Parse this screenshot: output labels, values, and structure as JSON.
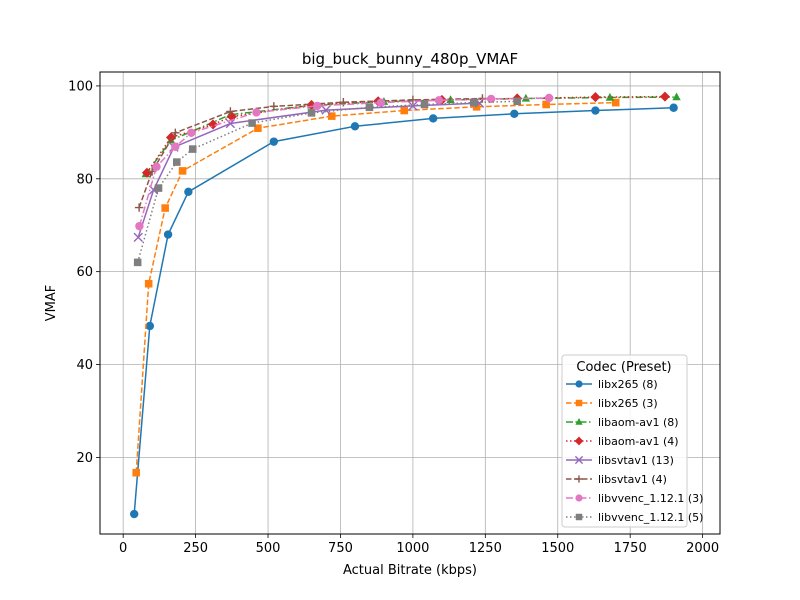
{
  "chart_data": {
    "type": "line",
    "title": "big_buck_bunny_480p_VMAF",
    "xlabel": "Actual Bitrate (kbps)",
    "ylabel": "VMAF",
    "xlim": [
      -80,
      2060
    ],
    "ylim": [
      3.5,
      103
    ],
    "xticks": [
      0,
      250,
      500,
      750,
      1000,
      1250,
      1500,
      1750,
      2000
    ],
    "yticks": [
      20,
      40,
      60,
      80,
      100
    ],
    "grid": true,
    "legend": {
      "title": "Codec (Preset)",
      "placement": "lower right"
    },
    "series": [
      {
        "name": "libx265 (8)",
        "color": "#1f77b4",
        "marker": "circle",
        "dash": "solid",
        "points": [
          [
            38,
            7.8
          ],
          [
            92,
            48.3
          ],
          [
            155,
            68.0
          ],
          [
            225,
            77.2
          ],
          [
            520,
            88.0
          ],
          [
            800,
            91.3
          ],
          [
            1070,
            93.0
          ],
          [
            1350,
            94.0
          ],
          [
            1630,
            94.7
          ],
          [
            1900,
            95.3
          ]
        ]
      },
      {
        "name": "libx265 (3)",
        "color": "#ff7f0e",
        "marker": "square",
        "dash": "dashed",
        "points": [
          [
            45,
            16.7
          ],
          [
            88,
            57.4
          ],
          [
            145,
            73.7
          ],
          [
            205,
            81.7
          ],
          [
            465,
            90.9
          ],
          [
            720,
            93.5
          ],
          [
            970,
            94.7
          ],
          [
            1220,
            95.5
          ],
          [
            1460,
            96.0
          ],
          [
            1700,
            96.4
          ]
        ]
      },
      {
        "name": "libaom-av1 (8)",
        "color": "#2ca02c",
        "marker": "triangle",
        "dash": "dashdot",
        "points": [
          [
            78,
            81.0
          ],
          [
            165,
            88.3
          ],
          [
            370,
            93.8
          ],
          [
            650,
            95.8
          ],
          [
            900,
            96.6
          ],
          [
            1130,
            97.0
          ],
          [
            1390,
            97.3
          ],
          [
            1680,
            97.5
          ],
          [
            1910,
            97.6
          ]
        ]
      },
      {
        "name": "libaom-av1 (4)",
        "color": "#d62728",
        "marker": "diamond",
        "dash": "dotted",
        "points": [
          [
            82,
            81.3
          ],
          [
            165,
            88.9
          ],
          [
            310,
            91.7
          ],
          [
            375,
            93.4
          ],
          [
            650,
            95.9
          ],
          [
            880,
            96.7
          ],
          [
            1100,
            97.0
          ],
          [
            1360,
            97.3
          ],
          [
            1630,
            97.6
          ],
          [
            1870,
            97.7
          ]
        ]
      },
      {
        "name": "libsvtav1 (13)",
        "color": "#9467bd",
        "marker": "x",
        "dash": "solid",
        "points": [
          [
            52,
            67.4
          ],
          [
            105,
            77.6
          ],
          [
            175,
            86.8
          ],
          [
            370,
            91.9
          ],
          [
            700,
            94.8
          ],
          [
            1000,
            95.7
          ],
          [
            1230,
            96.3
          ]
        ]
      },
      {
        "name": "libsvtav1 (4)",
        "color": "#8c564b",
        "marker": "plus",
        "dash": "dashed",
        "points": [
          [
            55,
            73.8
          ],
          [
            100,
            81.6
          ],
          [
            180,
            89.9
          ],
          [
            370,
            94.5
          ],
          [
            520,
            95.6
          ],
          [
            760,
            96.5
          ],
          [
            1000,
            97.0
          ],
          [
            1240,
            97.3
          ]
        ]
      },
      {
        "name": "libvvenc_1.12.1 (3)",
        "color": "#e377c2",
        "marker": "circle",
        "dash": "dashdot",
        "points": [
          [
            56,
            69.8
          ],
          [
            115,
            82.6
          ],
          [
            180,
            86.9
          ],
          [
            235,
            89.9
          ],
          [
            460,
            94.3
          ],
          [
            670,
            95.7
          ],
          [
            890,
            96.4
          ],
          [
            1090,
            96.9
          ],
          [
            1270,
            97.2
          ],
          [
            1470,
            97.4
          ]
        ]
      },
      {
        "name": "libvvenc_1.12.1 (5)",
        "color": "#7f7f7f",
        "marker": "square",
        "dash": "dotted",
        "points": [
          [
            50,
            62.0
          ],
          [
            122,
            78.0
          ],
          [
            185,
            83.6
          ],
          [
            240,
            86.4
          ],
          [
            445,
            92.0
          ],
          [
            650,
            94.2
          ],
          [
            850,
            95.4
          ],
          [
            1040,
            96.0
          ],
          [
            1210,
            96.4
          ],
          [
            1360,
            96.7
          ]
        ]
      }
    ]
  }
}
